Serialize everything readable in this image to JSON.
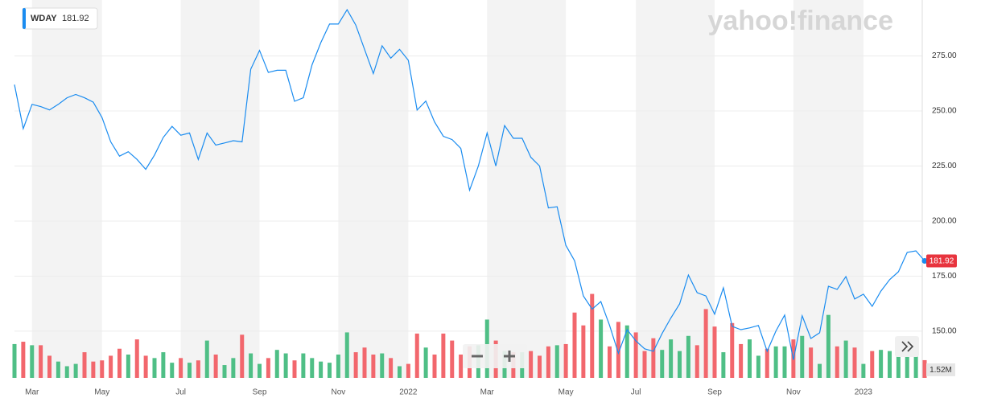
{
  "chart_data": {
    "type": "line",
    "watermark": "yahoo!finance",
    "categories": [
      null,
      null,
      "Mar",
      null,
      null,
      null,
      null,
      null,
      null,
      null,
      "May",
      null,
      null,
      null,
      null,
      null,
      null,
      null,
      null,
      "Jul",
      null,
      null,
      null,
      null,
      null,
      null,
      null,
      null,
      "Sep",
      null,
      null,
      null,
      null,
      null,
      null,
      null,
      null,
      "Nov",
      null,
      null,
      null,
      null,
      null,
      null,
      null,
      "2022",
      null,
      null,
      null,
      null,
      null,
      null,
      null,
      null,
      "Mar",
      null,
      null,
      null,
      null,
      null,
      null,
      null,
      null,
      "May",
      null,
      null,
      null,
      null,
      null,
      null,
      null,
      "Jul",
      null,
      null,
      null,
      null,
      null,
      null,
      null,
      null,
      "Sep",
      null,
      null,
      null,
      null,
      null,
      null,
      null,
      null,
      "Nov",
      null,
      null,
      null,
      null,
      null,
      null,
      null,
      "2023",
      null,
      null,
      null,
      null,
      null,
      null,
      null
    ],
    "series": [
      {
        "name": "WDAY",
        "color": "#1a8cf0",
        "values": [
          262,
          242,
          253,
          252,
          250.5,
          253,
          256,
          257.5,
          256,
          254,
          247,
          236,
          229.5,
          231.5,
          228,
          223.5,
          230,
          238,
          243,
          239,
          240,
          228,
          240,
          234.5,
          235.5,
          236.5,
          236,
          269,
          277.5,
          267.5,
          268.5,
          268.5,
          254.4,
          256,
          271,
          281,
          289.5,
          289.5,
          296,
          289,
          278,
          267,
          279.6,
          274,
          278,
          273,
          250.4,
          254.5,
          245,
          238.5,
          237,
          233,
          214,
          225,
          240,
          225,
          243.4,
          237.6,
          237.6,
          229,
          225,
          206,
          206.5,
          189,
          182,
          166,
          160,
          163.5,
          152.6,
          140,
          150.7,
          145.6,
          142,
          140.9,
          149,
          156,
          162.4,
          175.5,
          167.5,
          166,
          157.7,
          169.7,
          152.2,
          150.7,
          151.5,
          152.6,
          140.9,
          150,
          157.3,
          137,
          157,
          146.7,
          149.3,
          170.4,
          169,
          174.8,
          164.6,
          166.8,
          161.3,
          168.2,
          173.4,
          177,
          185.8,
          186.5,
          181.92
        ]
      },
      {
        "type": "bar",
        "axis": "y2",
        "up_color": "#4fbf86",
        "down_color": "#f2676d",
        "last_label": "1.52M",
        "values": [
          2.9,
          3.1,
          2.8,
          2.8,
          1.9,
          1.4,
          1.0,
          1.2,
          2.2,
          1.4,
          1.5,
          1.9,
          2.5,
          2.0,
          3.3,
          1.9,
          1.7,
          2.2,
          1.3,
          1.7,
          1.3,
          1.5,
          3.2,
          2.0,
          1.1,
          1.7,
          3.7,
          2.1,
          1.2,
          1.7,
          2.4,
          2.1,
          1.5,
          2.1,
          1.7,
          1.4,
          1.3,
          2.0,
          3.9,
          2.2,
          2.6,
          2.0,
          2.1,
          1.7,
          1.0,
          1.2,
          3.8,
          2.6,
          2.0,
          3.8,
          3.2,
          2.0,
          2.7,
          2.8,
          5.0,
          3.2,
          2.3,
          2.2,
          2.2,
          2.3,
          1.9,
          2.7,
          2.8,
          2.9,
          5.6,
          4.5,
          7.2,
          5.0,
          2.7,
          4.8,
          4.5,
          3.9,
          2.3,
          3.4,
          2.4,
          3.3,
          2.3,
          3.6,
          2.8,
          5.9,
          4.4,
          2.2,
          4.7,
          2.9,
          3.3,
          1.9,
          2.5,
          2.7,
          2.7,
          3.3,
          3.6,
          2.6,
          1.2,
          5.4,
          2.7,
          3.2,
          2.6,
          1.2,
          2.3,
          2.4,
          2.3,
          2.0,
          2.6,
          2.3,
          1.52
        ]
      }
    ],
    "ylim": [
      128.8,
      300.4
    ],
    "yticks": [
      {
        "value": 150,
        "label": "150.00"
      },
      {
        "value": 175,
        "label": "175.00"
      },
      {
        "value": 200,
        "label": "200.00"
      },
      {
        "value": 225,
        "label": "225.00"
      },
      {
        "value": 250,
        "label": "250.00"
      },
      {
        "value": 275,
        "label": "275.00"
      }
    ],
    "y2lim": [
      0,
      32.4
    ],
    "grid": true,
    "shaded_months": true
  }
}
